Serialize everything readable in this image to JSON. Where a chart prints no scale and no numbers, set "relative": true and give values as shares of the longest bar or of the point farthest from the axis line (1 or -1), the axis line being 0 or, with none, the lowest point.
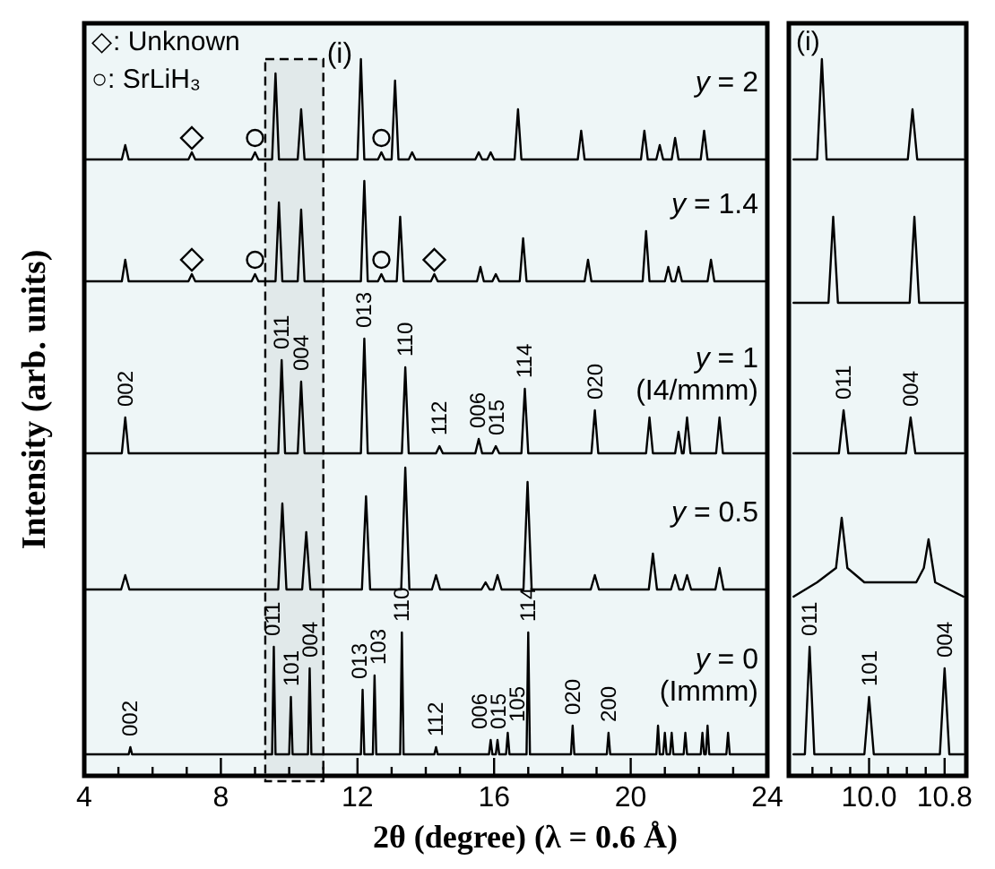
{
  "chart_data": [
    {
      "type": "line",
      "relative": true,
      "xlabel": "2θ (degree) (λ = 0.6 Å)",
      "ylabel": "Intensity (arb. units)",
      "tick_labels": "x",
      "xlim": [
        4,
        24
      ],
      "xticks": [
        4,
        {
          "value": 5,
          "label": null
        },
        {
          "value": 6,
          "label": null
        },
        {
          "value": 7,
          "label": null
        },
        8,
        {
          "value": 9,
          "label": null
        },
        {
          "value": 10,
          "label": null
        },
        {
          "value": 11,
          "label": null
        },
        12,
        {
          "value": 13,
          "label": null
        },
        {
          "value": 14,
          "label": null
        },
        {
          "value": 15,
          "label": null
        },
        16,
        {
          "value": 17,
          "label": null
        },
        {
          "value": 18,
          "label": null
        },
        {
          "value": 19,
          "label": null
        },
        20,
        {
          "value": 21,
          "label": null
        },
        {
          "value": 22,
          "label": null
        },
        {
          "value": 23,
          "label": null
        },
        24
      ],
      "bands": [
        {
          "axis": "x",
          "from": 9.3,
          "to": 11.0,
          "label": "(i)",
          "color": "#000000"
        }
      ],
      "series": [
        {
          "name": "y = 2",
          "color": "#000000",
          "x": [
            4,
            5.1,
            5.2,
            5.3,
            7.05,
            7.15,
            7.25,
            8.9,
            9.0,
            9.1,
            9.5,
            9.6,
            9.7,
            10.25,
            10.35,
            10.45,
            12.0,
            12.1,
            12.2,
            12.6,
            12.7,
            12.8,
            13.0,
            13.1,
            13.2,
            13.5,
            13.6,
            13.7,
            15.45,
            15.55,
            15.65,
            15.8,
            15.9,
            16.0,
            16.6,
            16.7,
            16.8,
            18.45,
            18.55,
            18.65,
            20.3,
            20.4,
            20.5,
            20.75,
            20.85,
            20.95,
            21.2,
            21.3,
            21.4,
            22.05,
            22.15,
            22.25,
            24
          ],
          "values": [
            0.86,
            0.86,
            0.88,
            0.86,
            0.86,
            0.87,
            0.86,
            0.86,
            0.87,
            0.86,
            0.86,
            0.98,
            0.86,
            0.86,
            0.93,
            0.86,
            0.86,
            1.0,
            0.86,
            0.86,
            0.87,
            0.86,
            0.86,
            0.97,
            0.86,
            0.86,
            0.87,
            0.86,
            0.86,
            0.87,
            0.86,
            0.86,
            0.87,
            0.86,
            0.86,
            0.93,
            0.86,
            0.86,
            0.9,
            0.86,
            0.86,
            0.9,
            0.86,
            0.86,
            0.88,
            0.86,
            0.86,
            0.89,
            0.86,
            0.86,
            0.9,
            0.86,
            0.86
          ]
        },
        {
          "name": "y = 1.4",
          "color": "#000000",
          "x": [
            4,
            5.1,
            5.2,
            5.3,
            7.05,
            7.15,
            7.25,
            8.9,
            9.0,
            9.1,
            9.6,
            9.7,
            9.8,
            10.25,
            10.35,
            10.45,
            12.1,
            12.2,
            12.3,
            12.6,
            12.7,
            12.8,
            13.15,
            13.25,
            13.35,
            14.15,
            14.25,
            14.35,
            15.5,
            15.6,
            15.7,
            15.95,
            16.05,
            16.15,
            16.75,
            16.85,
            16.95,
            18.65,
            18.75,
            18.85,
            20.35,
            20.45,
            20.55,
            21.0,
            21.1,
            21.2,
            21.3,
            21.4,
            21.5,
            22.25,
            22.35,
            22.45,
            24
          ],
          "values": [
            0.69,
            0.69,
            0.72,
            0.69,
            0.69,
            0.7,
            0.69,
            0.69,
            0.7,
            0.69,
            0.69,
            0.8,
            0.69,
            0.69,
            0.79,
            0.69,
            0.69,
            0.83,
            0.69,
            0.69,
            0.7,
            0.69,
            0.69,
            0.78,
            0.69,
            0.69,
            0.7,
            0.69,
            0.69,
            0.71,
            0.69,
            0.69,
            0.7,
            0.69,
            0.69,
            0.75,
            0.69,
            0.69,
            0.72,
            0.69,
            0.69,
            0.76,
            0.69,
            0.69,
            0.71,
            0.69,
            0.69,
            0.71,
            0.69,
            0.69,
            0.72,
            0.69,
            0.69
          ]
        },
        {
          "name": "y = 1 (I4/mmm)",
          "color": "#000000",
          "x": [
            4,
            5.1,
            5.2,
            5.3,
            9.68,
            9.78,
            9.88,
            10.25,
            10.35,
            10.45,
            12.1,
            12.2,
            12.3,
            13.3,
            13.4,
            13.5,
            14.3,
            14.4,
            14.5,
            15.45,
            15.55,
            15.65,
            15.95,
            16.05,
            16.15,
            16.8,
            16.9,
            17.0,
            18.85,
            18.95,
            19.05,
            20.45,
            20.55,
            20.65,
            21.3,
            21.4,
            21.5,
            21.55,
            21.65,
            21.75,
            22.5,
            22.6,
            22.7,
            24
          ],
          "values": [
            0.45,
            0.45,
            0.5,
            0.45,
            0.45,
            0.58,
            0.45,
            0.45,
            0.55,
            0.45,
            0.45,
            0.61,
            0.45,
            0.45,
            0.57,
            0.45,
            0.45,
            0.46,
            0.45,
            0.45,
            0.47,
            0.45,
            0.45,
            0.46,
            0.45,
            0.45,
            0.54,
            0.45,
            0.45,
            0.51,
            0.45,
            0.45,
            0.5,
            0.45,
            0.45,
            0.48,
            0.45,
            0.45,
            0.5,
            0.45,
            0.45,
            0.5,
            0.45,
            0.45
          ]
        },
        {
          "name": "y = 0.5",
          "color": "#000000",
          "x": [
            4,
            5.08,
            5.2,
            5.32,
            9.68,
            9.8,
            9.92,
            10.38,
            10.5,
            10.62,
            12.13,
            12.25,
            12.37,
            13.28,
            13.4,
            13.52,
            14.18,
            14.3,
            14.42,
            15.63,
            15.75,
            15.87,
            15.98,
            16.1,
            16.22,
            16.86,
            16.98,
            17.1,
            18.83,
            18.95,
            19.07,
            20.53,
            20.65,
            20.77,
            21.18,
            21.3,
            21.42,
            21.53,
            21.65,
            21.77,
            22.48,
            22.6,
            22.72,
            24
          ],
          "values": [
            0.26,
            0.26,
            0.28,
            0.26,
            0.26,
            0.38,
            0.26,
            0.26,
            0.34,
            0.26,
            0.26,
            0.39,
            0.26,
            0.26,
            0.43,
            0.26,
            0.26,
            0.28,
            0.26,
            0.26,
            0.27,
            0.26,
            0.26,
            0.28,
            0.26,
            0.26,
            0.41,
            0.26,
            0.26,
            0.28,
            0.26,
            0.26,
            0.31,
            0.26,
            0.26,
            0.28,
            0.26,
            0.26,
            0.28,
            0.26,
            0.26,
            0.29,
            0.26,
            0.26
          ]
        },
        {
          "name": "y = 0 (Immm)",
          "color": "#000000",
          "x": [
            4,
            5.3,
            5.35,
            5.4,
            9.5,
            9.55,
            9.6,
            10.0,
            10.05,
            10.1,
            10.55,
            10.6,
            10.65,
            12.1,
            12.15,
            12.2,
            12.45,
            12.5,
            12.55,
            13.25,
            13.3,
            13.35,
            14.25,
            14.3,
            14.35,
            15.85,
            15.9,
            15.95,
            16.05,
            16.1,
            16.15,
            16.35,
            16.4,
            16.45,
            16.95,
            17.0,
            17.05,
            18.25,
            18.3,
            18.35,
            19.3,
            19.35,
            19.4,
            20.75,
            20.8,
            20.85,
            20.95,
            21.0,
            21.05,
            21.15,
            21.2,
            21.25,
            21.55,
            21.6,
            21.65,
            22.05,
            22.1,
            22.15,
            22.2,
            22.25,
            22.3,
            22.8,
            22.85,
            22.9,
            24
          ],
          "values": [
            0.03,
            0.03,
            0.04,
            0.03,
            0.03,
            0.18,
            0.03,
            0.03,
            0.11,
            0.03,
            0.03,
            0.15,
            0.03,
            0.03,
            0.12,
            0.03,
            0.03,
            0.14,
            0.03,
            0.03,
            0.2,
            0.03,
            0.03,
            0.04,
            0.03,
            0.03,
            0.05,
            0.03,
            0.03,
            0.05,
            0.03,
            0.03,
            0.06,
            0.03,
            0.03,
            0.2,
            0.03,
            0.03,
            0.07,
            0.03,
            0.03,
            0.06,
            0.03,
            0.03,
            0.07,
            0.03,
            0.03,
            0.06,
            0.03,
            0.03,
            0.06,
            0.03,
            0.03,
            0.06,
            0.03,
            0.03,
            0.06,
            0.03,
            0.03,
            0.07,
            0.03,
            0.03,
            0.06,
            0.03,
            0.03
          ]
        },
        {
          "type": "scatter",
          "marker": "diamond",
          "color": "#000000",
          "x": [
            7.15,
            7.15,
            14.25
          ],
          "values": [
            0.89,
            0.72,
            0.72
          ]
        },
        {
          "type": "scatter",
          "marker": "circle",
          "color": "#000000",
          "x": [
            9.0,
            12.7,
            9.0,
            12.7
          ],
          "values": [
            0.89,
            0.89,
            0.72,
            0.72
          ]
        }
      ],
      "annotations": [
        "◇: Unknown",
        "○: SrLiH₃",
        {
          "text": "002",
          "x": 5.2,
          "y": 0.5
        },
        {
          "text": "011",
          "x": 9.78,
          "y": 0.58
        },
        {
          "text": "004",
          "x": 10.35,
          "y": 0.55
        },
        {
          "text": "013",
          "x": 12.2,
          "y": 0.61
        },
        {
          "text": "110",
          "x": 13.4,
          "y": 0.57
        },
        {
          "text": "112",
          "x": 14.4,
          "y": 0.46
        },
        {
          "text": "006",
          "x": 15.55,
          "y": 0.47
        },
        {
          "text": "015",
          "x": 16.05,
          "y": 0.46
        },
        {
          "text": "114",
          "x": 16.9,
          "y": 0.54
        },
        {
          "text": "020",
          "x": 18.95,
          "y": 0.51
        },
        {
          "text": "002",
          "x": 5.35,
          "y": 0.04
        },
        {
          "text": "011",
          "x": 9.55,
          "y": 0.18
        },
        {
          "text": "101",
          "x": 10.05,
          "y": 0.11
        },
        {
          "text": "004",
          "x": 10.6,
          "y": 0.15
        },
        {
          "text": "013",
          "x": 12.15,
          "y": 0.12
        },
        {
          "text": "103",
          "x": 12.5,
          "y": 0.14
        },
        {
          "text": "110",
          "x": 13.3,
          "y": 0.2
        },
        {
          "text": "112",
          "x": 14.3,
          "y": 0.04
        },
        {
          "text": "006",
          "x": 15.9,
          "y": 0.05
        },
        {
          "text": "015",
          "x": 16.1,
          "y": 0.05
        },
        {
          "text": "105",
          "x": 16.4,
          "y": 0.06
        },
        {
          "text": "114",
          "x": 17.0,
          "y": 0.2
        },
        {
          "text": "020",
          "x": 18.3,
          "y": 0.07
        },
        {
          "text": "200",
          "x": 19.35,
          "y": 0.06
        }
      ]
    },
    {
      "type": "line",
      "relative": true,
      "tick_labels": "x",
      "xlim": [
        9.15,
        11.03
      ],
      "xticks": [
        {
          "value": 9.4,
          "label": null
        },
        {
          "value": 9.6,
          "label": null
        },
        {
          "value": 9.8,
          "label": null
        },
        {
          "value": 10.0,
          "label": "10.0"
        },
        {
          "value": 10.2,
          "label": null
        },
        {
          "value": 10.4,
          "label": null
        },
        {
          "value": 10.6,
          "label": null
        },
        {
          "value": 10.8,
          "label": "10.8"
        }
      ],
      "series": [
        {
          "color": "#000000",
          "x": [
            9.2,
            9.45,
            9.5,
            9.55,
            10.41,
            10.46,
            10.51,
            11.0
          ],
          "values": [
            0.86,
            0.86,
            1.0,
            0.86,
            0.86,
            0.93,
            0.86,
            0.86
          ]
        },
        {
          "color": "#000000",
          "x": [
            9.2,
            9.57,
            9.62,
            9.67,
            10.43,
            10.48,
            10.53,
            11.0
          ],
          "values": [
            0.66,
            0.66,
            0.78,
            0.66,
            0.66,
            0.78,
            0.66,
            0.66
          ]
        },
        {
          "color": "#000000",
          "x": [
            9.2,
            9.68,
            9.73,
            9.78,
            10.39,
            10.44,
            10.49,
            11.0
          ],
          "values": [
            0.45,
            0.45,
            0.51,
            0.45,
            0.45,
            0.5,
            0.45,
            0.45
          ]
        },
        {
          "color": "#000000",
          "x": [
            9.2,
            9.45,
            9.65,
            9.71,
            9.77,
            9.95,
            10.3,
            10.5,
            10.58,
            10.63,
            10.7,
            11.0
          ],
          "values": [
            0.25,
            0.27,
            0.29,
            0.36,
            0.29,
            0.27,
            0.27,
            0.27,
            0.29,
            0.33,
            0.27,
            0.25
          ]
        },
        {
          "color": "#000000",
          "x": [
            9.2,
            9.32,
            9.37,
            9.42,
            9.95,
            10.0,
            10.05,
            10.75,
            10.8,
            10.85,
            11.0
          ],
          "values": [
            0.03,
            0.03,
            0.18,
            0.03,
            0.03,
            0.11,
            0.03,
            0.03,
            0.15,
            0.03,
            0.03
          ]
        }
      ],
      "annotations": [
        "(i)",
        {
          "text": "011",
          "x": 9.73,
          "y": 0.51
        },
        {
          "text": "004",
          "x": 10.44,
          "y": 0.5
        },
        {
          "text": "011",
          "x": 9.37,
          "y": 0.18
        },
        {
          "text": "101",
          "x": 10.0,
          "y": 0.11
        },
        {
          "text": "004",
          "x": 10.8,
          "y": 0.15
        }
      ]
    }
  ]
}
